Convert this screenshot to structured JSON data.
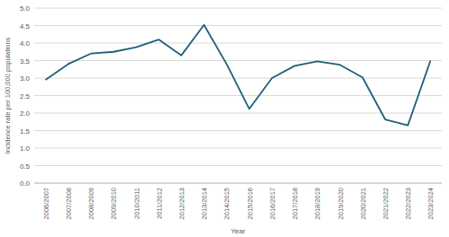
{
  "chart_data": {
    "type": "line",
    "x_label": "Year",
    "y_label": "Incidence rate per 100,000 populations",
    "categories": [
      "2006/2007",
      "2007/2008",
      "2008/2009",
      "2009/2010",
      "2010/2011",
      "2011/2012",
      "2012/2013",
      "2013/2014",
      "2014/2015",
      "2015/2016",
      "2016/2017",
      "2017/2018",
      "2018/2019",
      "2019/2020",
      "2020/2021",
      "2021/2022",
      "2022/2023",
      "2023/2024"
    ],
    "values": [
      2.95,
      3.4,
      3.7,
      3.75,
      3.88,
      4.1,
      3.65,
      4.52,
      3.4,
      2.12,
      3.0,
      3.35,
      3.48,
      3.38,
      3.02,
      1.82,
      1.65,
      3.5
    ],
    "color": "#215f78",
    "ylim": [
      0,
      5
    ],
    "yticks": [
      {
        "value": 0,
        "label": "0.0"
      },
      {
        "value": 0.5,
        "label": "0.5"
      },
      {
        "value": 1,
        "label": "1.0"
      },
      {
        "value": 1.5,
        "label": "1.5"
      },
      {
        "value": 2,
        "label": "2.0"
      },
      {
        "value": 2.5,
        "label": "2.5"
      },
      {
        "value": 3,
        "label": "3.0"
      },
      {
        "value": 3.5,
        "label": "3.5"
      },
      {
        "value": 4,
        "label": "4.0"
      },
      {
        "value": 4.5,
        "label": "4.5"
      },
      {
        "value": 5,
        "label": "5.0"
      }
    ],
    "grid": true
  }
}
